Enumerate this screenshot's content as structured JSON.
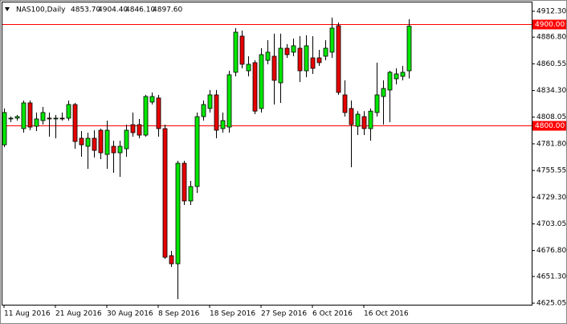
{
  "chart_data": {
    "type": "candlestick",
    "title": "NAS100,Daily",
    "header_values": [
      "4853.70",
      "4904.40",
      "4846.10",
      "4897.60"
    ],
    "categories": [
      "11 Aug 2016",
      null,
      null,
      null,
      null,
      null,
      null,
      null,
      "21 Aug 2016",
      null,
      null,
      null,
      null,
      null,
      null,
      null,
      "30 Aug 2016",
      null,
      null,
      null,
      null,
      null,
      null,
      null,
      "8 Sep 2016",
      null,
      null,
      null,
      null,
      null,
      null,
      null,
      "18 Sep 2016",
      null,
      null,
      null,
      null,
      null,
      null,
      null,
      "27 Sep 2016",
      null,
      null,
      null,
      null,
      null,
      null,
      null,
      "6 Oct 2016",
      null,
      null,
      null,
      null,
      null,
      null,
      null,
      "16 Oct 2016",
      null,
      null,
      null,
      null,
      null,
      null,
      null
    ],
    "open": [
      4780.9,
      4806.3,
      4807.1,
      4796.8,
      4822.1,
      4799.1,
      4804.7,
      4807.1,
      4806.3,
      4807.1,
      4807.1,
      4820.5,
      4787.3,
      4779.4,
      4787.3,
      4795.2,
      4771.4,
      4779.4,
      4773.0,
      4777.0,
      4800.7,
      4800.7,
      4790.4,
      4822.9,
      4826.9,
      4796.8,
      4671.8,
      4663.8,
      4762.7,
      4725.6,
      4739.8,
      4808.6,
      4816.6,
      4830.0,
      4796.8,
      4798.3,
      4852.2,
      4887.8,
      4853.7,
      4861.7,
      4816.6,
      4864.0,
      4868.0,
      4841.9,
      4875.9,
      4872.0,
      4875.9,
      4853.7,
      4866.4,
      4866.4,
      4868.0,
      4872.0,
      4898.1,
      4830.0,
      4816.6,
      4799.1,
      4808.6,
      4796.8,
      4812.6,
      4828.4,
      4834.8,
      4845.8,
      4848.2,
      4853.7
    ],
    "high": [
      4816.6,
      4808.6,
      4810.2,
      4824.5,
      4824.5,
      4812.6,
      4818.1,
      4812.6,
      4810.2,
      4812.6,
      4824.5,
      4822.1,
      4794.4,
      4792.8,
      4795.2,
      4796.8,
      4804.7,
      4784.9,
      4784.9,
      4800.7,
      4812.6,
      4806.3,
      4830.0,
      4832.4,
      4830.0,
      4800.7,
      4676.5,
      4765.1,
      4765.1,
      4745.3,
      4812.6,
      4824.5,
      4834.8,
      4834.8,
      4812.6,
      4853.7,
      4895.7,
      4893.3,
      4868.0,
      4864.0,
      4875.9,
      4883.8,
      4890.2,
      4890.2,
      4879.9,
      4885.4,
      4887.8,
      4888.6,
      4887.8,
      4874.3,
      4883.8,
      4906.0,
      4901.2,
      4844.3,
      4824.5,
      4814.0,
      4814.0,
      4816.6,
      4861.7,
      4844.3,
      4853.7,
      4856.1,
      4858.5,
      4904.4
    ],
    "low": [
      4778.6,
      4803.1,
      4804.7,
      4792.8,
      4795.2,
      4794.4,
      4800.7,
      4788.9,
      4787.3,
      4804.7,
      4804.7,
      4777.0,
      4769.1,
      4757.2,
      4768.3,
      4766.7,
      4757.2,
      4753.3,
      4749.3,
      4769.1,
      4788.9,
      4787.3,
      4788.9,
      4820.5,
      4788.9,
      4668.6,
      4660.7,
      4629.0,
      4721.6,
      4721.6,
      4733.5,
      4804.7,
      4812.6,
      4787.3,
      4792.8,
      4792.8,
      4848.2,
      4856.1,
      4848.2,
      4811.0,
      4812.6,
      4860.1,
      4820.5,
      4822.1,
      4866.4,
      4868.0,
      4842.7,
      4847.4,
      4850.6,
      4858.5,
      4864.0,
      4866.4,
      4830.0,
      4808.6,
      4758.8,
      4790.4,
      4790.4,
      4784.9,
      4808.6,
      4800.7,
      4803.1,
      4840.3,
      4844.3,
      4846.1
    ],
    "close": [
      4812.6,
      4807.1,
      4808.6,
      4822.1,
      4798.3,
      4806.3,
      4812.6,
      4806.3,
      4807.1,
      4806.3,
      4820.5,
      4784.1,
      4780.9,
      4787.3,
      4775.4,
      4773.0,
      4795.2,
      4773.0,
      4779.4,
      4795.2,
      4792.8,
      4790.4,
      4828.4,
      4828.4,
      4796.8,
      4670.2,
      4663.8,
      4762.7,
      4725.6,
      4739.8,
      4808.6,
      4820.5,
      4830.0,
      4795.2,
      4804.7,
      4849.8,
      4891.7,
      4860.1,
      4860.1,
      4814.0,
      4869.6,
      4872.0,
      4844.3,
      4875.9,
      4869.6,
      4878.3,
      4853.7,
      4878.3,
      4856.1,
      4861.7,
      4875.9,
      4895.7,
      4832.4,
      4812.6,
      4800.7,
      4811.0,
      4796.8,
      4814.0,
      4830.0,
      4836.3,
      4852.2,
      4850.6,
      4852.2,
      4897.6
    ],
    "up_color": "#00e600",
    "down_color": "#e60000",
    "ylim": [
      4624.3,
      4919.4
    ],
    "yticks": [
      {
        "value": 4912.3,
        "label": "4912.30"
      },
      {
        "value": 4886.8,
        "label": "4886.80"
      },
      {
        "value": 4860.55,
        "label": "4860.55"
      },
      {
        "value": 4834.3,
        "label": "4834.30"
      },
      {
        "value": 4808.05,
        "label": "4808.05"
      },
      {
        "value": 4781.8,
        "label": "4781.80"
      },
      {
        "value": 4755.55,
        "label": "4755.55"
      },
      {
        "value": 4729.3,
        "label": "4729.30"
      },
      {
        "value": 4703.05,
        "label": "4703.05"
      },
      {
        "value": 4676.8,
        "label": "4676.80"
      },
      {
        "value": 4651.3,
        "label": "4651.30"
      },
      {
        "value": 4625.05,
        "label": "4625.05"
      }
    ],
    "hlines": [
      {
        "value": 4900,
        "label": "4900.00",
        "color": "#ff0000"
      },
      {
        "value": 4800,
        "label": "4800.00",
        "color": "#ff0000"
      }
    ]
  }
}
